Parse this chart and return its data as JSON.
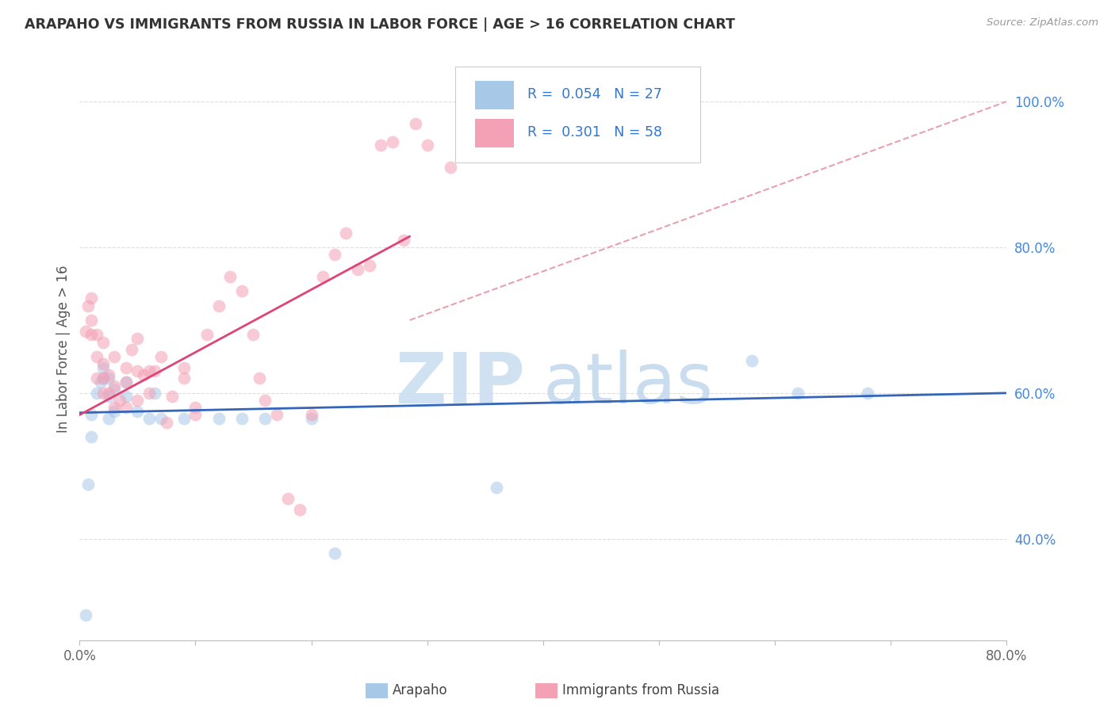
{
  "title": "ARAPAHO VS IMMIGRANTS FROM RUSSIA IN LABOR FORCE | AGE > 16 CORRELATION CHART",
  "source_text": "Source: ZipAtlas.com",
  "ylabel": "In Labor Force | Age > 16",
  "legend_label_1": "Arapaho",
  "legend_label_2": "Immigrants from Russia",
  "color_blue": "#a8c8e8",
  "color_pink": "#f4a0b5",
  "color_blue_line": "#3366bb",
  "color_pink_line": "#dd4477",
  "color_diag": "#e8a0b0",
  "xlim": [
    0.0,
    0.8
  ],
  "ylim": [
    0.26,
    1.06
  ],
  "xtick_positions": [
    0.0,
    0.1,
    0.2,
    0.3,
    0.4,
    0.5,
    0.6,
    0.7,
    0.8
  ],
  "xtick_labels": [
    "0.0%",
    "",
    "",
    "",
    "",
    "",
    "",
    "",
    "80.0%"
  ],
  "ytick_positions": [
    0.4,
    0.6,
    0.8,
    1.0
  ],
  "ytick_labels": [
    "40.0%",
    "60.0%",
    "80.0%",
    "100.0%"
  ],
  "blue_x": [
    0.005,
    0.007,
    0.01,
    0.01,
    0.015,
    0.018,
    0.02,
    0.02,
    0.025,
    0.025,
    0.025,
    0.03,
    0.03,
    0.04,
    0.04,
    0.05,
    0.06,
    0.065,
    0.07,
    0.09,
    0.12,
    0.14,
    0.16,
    0.2,
    0.22,
    0.36,
    0.58,
    0.62,
    0.68
  ],
  "blue_y": [
    0.295,
    0.475,
    0.54,
    0.57,
    0.6,
    0.615,
    0.62,
    0.635,
    0.565,
    0.595,
    0.62,
    0.575,
    0.605,
    0.595,
    0.615,
    0.575,
    0.565,
    0.6,
    0.565,
    0.565,
    0.565,
    0.565,
    0.565,
    0.565,
    0.38,
    0.47,
    0.645,
    0.6,
    0.6
  ],
  "pink_x": [
    0.005,
    0.007,
    0.01,
    0.01,
    0.01,
    0.015,
    0.015,
    0.015,
    0.02,
    0.02,
    0.02,
    0.02,
    0.025,
    0.025,
    0.03,
    0.03,
    0.03,
    0.035,
    0.04,
    0.04,
    0.04,
    0.045,
    0.05,
    0.05,
    0.05,
    0.055,
    0.06,
    0.06,
    0.065,
    0.07,
    0.075,
    0.08,
    0.09,
    0.09,
    0.1,
    0.1,
    0.11,
    0.12,
    0.13,
    0.14,
    0.15,
    0.155,
    0.16,
    0.17,
    0.18,
    0.19,
    0.2,
    0.21,
    0.22,
    0.23,
    0.24,
    0.25,
    0.26,
    0.27,
    0.28,
    0.29,
    0.3,
    0.32
  ],
  "pink_y": [
    0.685,
    0.72,
    0.68,
    0.7,
    0.73,
    0.62,
    0.65,
    0.68,
    0.6,
    0.62,
    0.64,
    0.67,
    0.6,
    0.625,
    0.58,
    0.61,
    0.65,
    0.59,
    0.58,
    0.615,
    0.635,
    0.66,
    0.59,
    0.63,
    0.675,
    0.625,
    0.6,
    0.63,
    0.63,
    0.65,
    0.56,
    0.595,
    0.62,
    0.635,
    0.57,
    0.58,
    0.68,
    0.72,
    0.76,
    0.74,
    0.68,
    0.62,
    0.59,
    0.57,
    0.455,
    0.44,
    0.57,
    0.76,
    0.79,
    0.82,
    0.77,
    0.775,
    0.94,
    0.945,
    0.81,
    0.97,
    0.94,
    0.91
  ],
  "blue_line_x": [
    0.0,
    0.8
  ],
  "blue_line_y": [
    0.573,
    0.6
  ],
  "pink_line_x": [
    0.0,
    0.285
  ],
  "pink_line_y": [
    0.57,
    0.815
  ],
  "diag_line_x": [
    0.285,
    0.8
  ],
  "diag_line_y": [
    0.7,
    1.0
  ],
  "watermark_zip": "ZIP",
  "watermark_atlas": "atlas",
  "background_color": "#ffffff",
  "grid_color": "#dddddd"
}
